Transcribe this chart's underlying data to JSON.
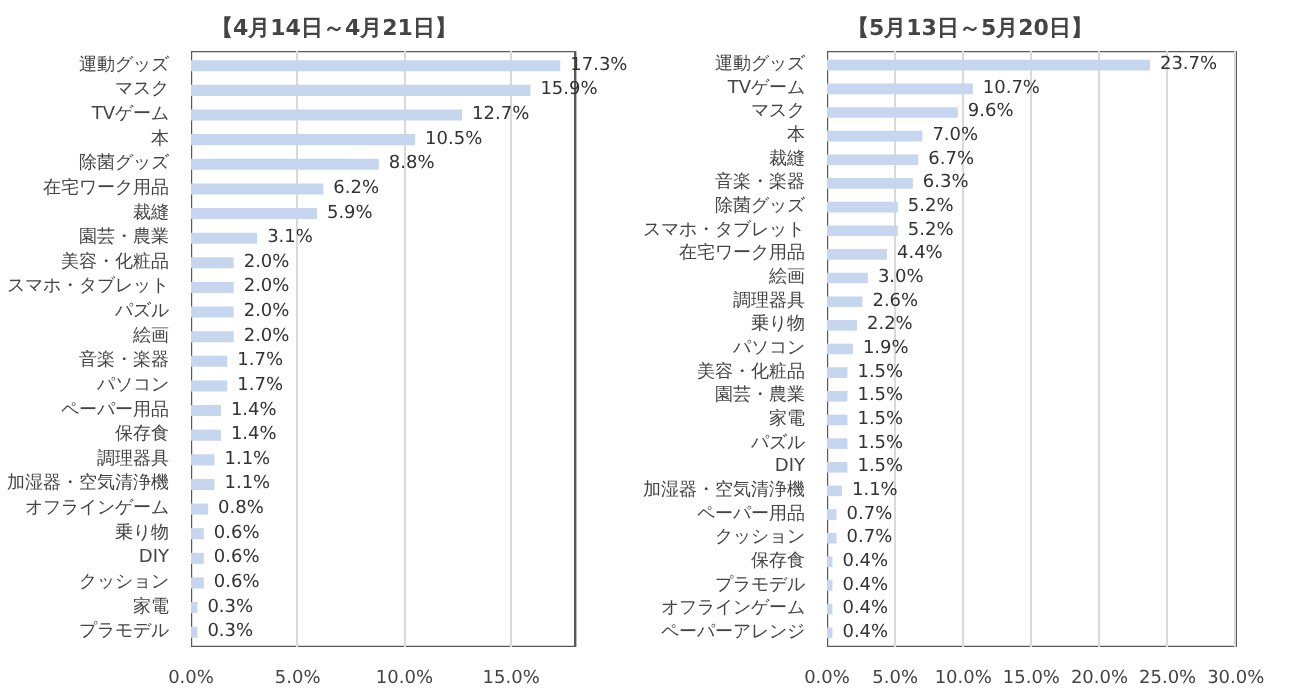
{
  "chart_data": [
    {
      "type": "bar",
      "orientation": "horizontal",
      "title": "【4月14日～4月21日】",
      "categories": [
        "運動グッズ",
        "マスク",
        "TVゲーム",
        "本",
        "除菌グッズ",
        "在宅ワーク用品",
        "裁縫",
        "園芸・農業",
        "美容・化粧品",
        "スマホ・タブレット",
        "パズル",
        "絵画",
        "音楽・楽器",
        "パソコン",
        "ペーパー用品",
        "保存食",
        "調理器具",
        "加湿器・空気清浄機",
        "オフラインゲーム",
        "乗り物",
        "DIY",
        "クッション",
        "家電",
        "プラモデル"
      ],
      "values": [
        17.3,
        15.9,
        12.7,
        10.5,
        8.8,
        6.2,
        5.9,
        3.1,
        2.0,
        2.0,
        2.0,
        2.0,
        1.7,
        1.7,
        1.4,
        1.4,
        1.1,
        1.1,
        0.8,
        0.6,
        0.6,
        0.6,
        0.3,
        0.3
      ],
      "value_labels": [
        "17.3%",
        "15.9%",
        "12.7%",
        "10.5%",
        "8.8%",
        "6.2%",
        "5.9%",
        "3.1%",
        "2.0%",
        "2.0%",
        "2.0%",
        "2.0%",
        "1.7%",
        "1.7%",
        "1.4%",
        "1.4%",
        "1.1%",
        "1.1%",
        "0.8%",
        "0.6%",
        "0.6%",
        "0.6%",
        "0.3%",
        "0.3%"
      ],
      "color": "#c6d6ee",
      "xlim": [
        0,
        18
      ],
      "xticks": [
        {
          "value": 0,
          "label": "0.0%"
        },
        {
          "value": 5,
          "label": "5.0%"
        },
        {
          "value": 10,
          "label": "10.0%"
        },
        {
          "value": 15,
          "label": "15.0%"
        }
      ],
      "grid": "x"
    },
    {
      "type": "bar",
      "orientation": "horizontal",
      "title": "【5月13日～5月20日】",
      "categories": [
        "運動グッズ",
        "TVゲーム",
        "マスク",
        "本",
        "裁縫",
        "音楽・楽器",
        "除菌グッズ",
        "スマホ・タブレット",
        "在宅ワーク用品",
        "絵画",
        "調理器具",
        "乗り物",
        "パソコン",
        "美容・化粧品",
        "園芸・農業",
        "家電",
        "パズル",
        "DIY",
        "加湿器・空気清浄機",
        "ペーパー用品",
        "クッション",
        "保存食",
        "プラモデル",
        "オフラインゲーム",
        "ペーパーアレンジ"
      ],
      "values": [
        23.7,
        10.7,
        9.6,
        7.0,
        6.7,
        6.3,
        5.2,
        5.2,
        4.4,
        3.0,
        2.6,
        2.2,
        1.9,
        1.5,
        1.5,
        1.5,
        1.5,
        1.5,
        1.1,
        0.7,
        0.7,
        0.4,
        0.4,
        0.4,
        0.4
      ],
      "value_labels": [
        "23.7%",
        "10.7%",
        "9.6%",
        "7.0%",
        "6.7%",
        "6.3%",
        "5.2%",
        "5.2%",
        "4.4%",
        "3.0%",
        "2.6%",
        "2.2%",
        "1.9%",
        "1.5%",
        "1.5%",
        "1.5%",
        "1.5%",
        "1.5%",
        "1.1%",
        "0.7%",
        "0.7%",
        "0.4%",
        "0.4%",
        "0.4%",
        "0.4%"
      ],
      "color": "#c6d6ee",
      "xlim": [
        0,
        30
      ],
      "xticks": [
        {
          "value": 0,
          "label": "0.0%"
        },
        {
          "value": 5,
          "label": "5.0%"
        },
        {
          "value": 10,
          "label": "10.0%"
        },
        {
          "value": 15,
          "label": "15.0%"
        },
        {
          "value": 20,
          "label": "20.0%"
        },
        {
          "value": 25,
          "label": "25.0%"
        },
        {
          "value": 30,
          "label": "30.0%"
        }
      ],
      "grid": "x"
    }
  ]
}
